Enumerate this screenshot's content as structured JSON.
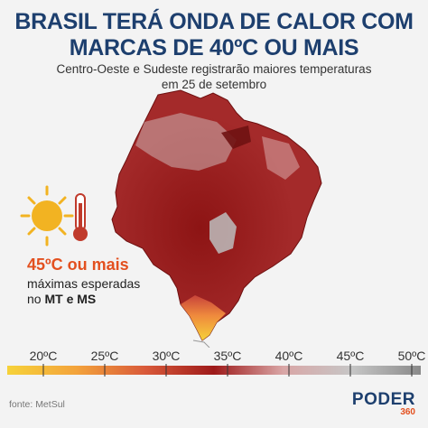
{
  "header": {
    "title_line1": "BRASIL TERÁ ONDA DE CALOR COM",
    "title_line2": "MARCAS DE 40ºC OU MAIS",
    "subtitle_line1": "Centro-Oeste e Sudeste registrarão maiores temperaturas",
    "subtitle_line2": "em 25 de setembro"
  },
  "callout": {
    "temp": "45ºC ou mais",
    "desc_line1": "máximas esperadas",
    "desc_prefix": "no ",
    "desc_bold": "MT e MS"
  },
  "scale": {
    "ticks": [
      "20ºC",
      "25ºC",
      "30ºC",
      "35ºC",
      "40ºC",
      "45ºC",
      "50ºC"
    ],
    "colors": [
      "#f6d23a",
      "#f3a33b",
      "#d95a3a",
      "#9e1a1a",
      "#d9a6a6",
      "#c6c6c6",
      "#8a8a8a"
    ]
  },
  "footer": {
    "source": "fonte: MetSul",
    "brand_main": "PODER",
    "brand_sub": "360"
  }
}
